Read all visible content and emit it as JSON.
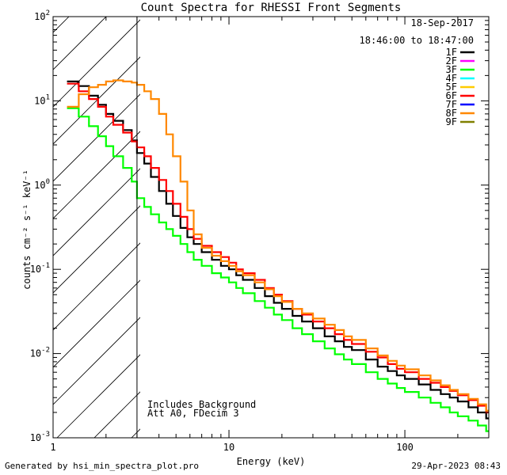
{
  "footer": {
    "generated_by": "Generated by hsi_min_spectra_plot.pro",
    "timestamp": "29-Apr-2023 08:43"
  },
  "chart_data": {
    "type": "line",
    "title": "Count Spectra for RHESSI Front Segments",
    "xlabel": "Energy (keV)",
    "ylabel": "counts cm⁻² s⁻¹ keV⁻¹",
    "xscale": "log",
    "yscale": "log",
    "xlim": [
      1,
      300
    ],
    "ylim": [
      0.001,
      100
    ],
    "x_ticks": [
      {
        "value": 1,
        "label": "1"
      },
      {
        "value": 10,
        "label": "10"
      },
      {
        "value": 100,
        "label": "100"
      }
    ],
    "y_ticks": [
      {
        "value": 0.001,
        "mantissa": "10",
        "exp": "-3"
      },
      {
        "value": 0.01,
        "mantissa": "10",
        "exp": "-2"
      },
      {
        "value": 0.1,
        "mantissa": "10",
        "exp": "-1"
      },
      {
        "value": 1,
        "mantissa": "10",
        "exp": "0"
      },
      {
        "value": 10,
        "mantissa": "10",
        "exp": "1"
      },
      {
        "value": 100,
        "mantissa": "10",
        "exp": "2"
      }
    ],
    "date": "18-Sep-2017",
    "time_range": "18:46:00 to 18:47:00",
    "annotations": [
      "Includes Background",
      "Att A0, FDecim 3"
    ],
    "hatch_region_max_energy": 3,
    "legend_position": "top-right",
    "legend": [
      {
        "name": "1F",
        "color": "#000000"
      },
      {
        "name": "2F",
        "color": "#ff00ff"
      },
      {
        "name": "3F",
        "color": "#00ff00"
      },
      {
        "name": "4F",
        "color": "#00ffff"
      },
      {
        "name": "5F",
        "color": "#ffcc00"
      },
      {
        "name": "6F",
        "color": "#ff0000"
      },
      {
        "name": "7F",
        "color": "#0000ff"
      },
      {
        "name": "8F",
        "color": "#ff8800"
      },
      {
        "name": "9F",
        "color": "#808000"
      }
    ],
    "series": [
      {
        "name": "1F",
        "color": "#000000",
        "x": [
          1.2,
          1.4,
          1.6,
          1.8,
          2.0,
          2.2,
          2.5,
          2.8,
          3.0,
          3.3,
          3.6,
          4.0,
          4.4,
          4.8,
          5.3,
          5.8,
          6.3,
          7,
          8,
          9,
          10,
          11,
          12,
          14,
          16,
          18,
          20,
          23,
          26,
          30,
          35,
          40,
          45,
          50,
          60,
          70,
          80,
          90,
          100,
          120,
          140,
          160,
          180,
          200,
          230,
          260,
          290
        ],
        "y": [
          17,
          15,
          11.5,
          9,
          7,
          5.8,
          4.5,
          3.4,
          2.4,
          1.8,
          1.25,
          0.85,
          0.6,
          0.43,
          0.31,
          0.24,
          0.2,
          0.16,
          0.13,
          0.11,
          0.1,
          0.085,
          0.075,
          0.06,
          0.048,
          0.04,
          0.034,
          0.028,
          0.024,
          0.02,
          0.016,
          0.014,
          0.012,
          0.011,
          0.0085,
          0.007,
          0.0062,
          0.0055,
          0.005,
          0.0043,
          0.0037,
          0.0033,
          0.003,
          0.0027,
          0.0023,
          0.002,
          0.0017
        ]
      },
      {
        "name": "6F",
        "color": "#ff0000",
        "x": [
          1.2,
          1.4,
          1.6,
          1.8,
          2.0,
          2.2,
          2.5,
          2.8,
          3.0,
          3.3,
          3.6,
          4.0,
          4.4,
          4.8,
          5.3,
          5.8,
          6.3,
          7,
          8,
          9,
          10,
          11,
          12,
          14,
          16,
          18,
          20,
          23,
          26,
          30,
          35,
          40,
          45,
          50,
          60,
          70,
          80,
          90,
          100,
          120,
          140,
          160,
          180,
          200,
          230,
          260,
          290
        ],
        "y": [
          16,
          13,
          10.5,
          8.5,
          6.5,
          5.2,
          4.2,
          3.3,
          2.8,
          2.2,
          1.6,
          1.15,
          0.85,
          0.6,
          0.42,
          0.3,
          0.23,
          0.19,
          0.16,
          0.14,
          0.12,
          0.1,
          0.09,
          0.075,
          0.06,
          0.05,
          0.042,
          0.034,
          0.029,
          0.024,
          0.02,
          0.017,
          0.0145,
          0.013,
          0.0105,
          0.009,
          0.0075,
          0.0066,
          0.006,
          0.005,
          0.0045,
          0.004,
          0.0036,
          0.0032,
          0.0028,
          0.0024,
          0.002
        ]
      },
      {
        "name": "3F",
        "color": "#00ff00",
        "x": [
          1.2,
          1.4,
          1.6,
          1.8,
          2.0,
          2.2,
          2.5,
          2.8,
          3.0,
          3.3,
          3.6,
          4.0,
          4.4,
          4.8,
          5.3,
          5.8,
          6.3,
          7,
          8,
          9,
          10,
          11,
          12,
          14,
          16,
          18,
          20,
          23,
          26,
          30,
          35,
          40,
          45,
          50,
          60,
          70,
          80,
          90,
          100,
          120,
          140,
          160,
          180,
          200,
          230,
          260,
          290
        ],
        "y": [
          8.2,
          6.5,
          5,
          3.8,
          2.9,
          2.2,
          1.6,
          1.1,
          0.7,
          0.55,
          0.45,
          0.36,
          0.3,
          0.25,
          0.2,
          0.16,
          0.13,
          0.11,
          0.09,
          0.08,
          0.07,
          0.06,
          0.052,
          0.042,
          0.035,
          0.029,
          0.025,
          0.02,
          0.017,
          0.014,
          0.0115,
          0.0098,
          0.0085,
          0.0075,
          0.006,
          0.005,
          0.0044,
          0.0039,
          0.0035,
          0.003,
          0.0026,
          0.0023,
          0.002,
          0.0018,
          0.0016,
          0.0014,
          0.0012
        ]
      },
      {
        "name": "8F",
        "color": "#ff8800",
        "x": [
          1.2,
          1.4,
          1.6,
          1.8,
          2.0,
          2.2,
          2.5,
          2.8,
          3.0,
          3.3,
          3.6,
          4.0,
          4.4,
          4.8,
          5.3,
          5.8,
          6.3,
          7,
          8,
          9,
          10,
          11,
          12,
          14,
          16,
          18,
          20,
          23,
          26,
          30,
          35,
          40,
          45,
          50,
          60,
          70,
          80,
          90,
          100,
          120,
          140,
          160,
          180,
          200,
          230,
          260,
          290
        ],
        "y": [
          8.5,
          12,
          14.5,
          15.5,
          17,
          17.5,
          17,
          16.5,
          15.5,
          13,
          10.5,
          7,
          4,
          2.2,
          1.1,
          0.5,
          0.26,
          0.18,
          0.145,
          0.125,
          0.11,
          0.095,
          0.085,
          0.07,
          0.058,
          0.048,
          0.041,
          0.034,
          0.03,
          0.026,
          0.022,
          0.019,
          0.016,
          0.0145,
          0.0115,
          0.0095,
          0.0082,
          0.0072,
          0.0065,
          0.0055,
          0.0048,
          0.0042,
          0.0037,
          0.0033,
          0.0029,
          0.0025,
          0.0021
        ]
      }
    ]
  }
}
